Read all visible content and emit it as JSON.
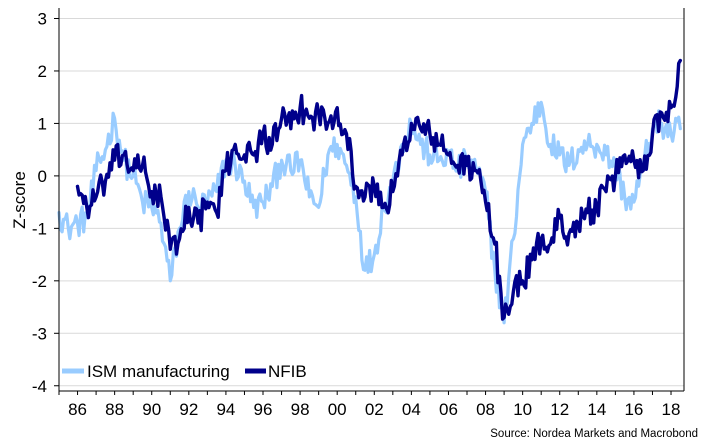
{
  "chart_data": {
    "type": "line",
    "ylabel": "Z-score",
    "xlabel": "",
    "source": "Source: Nordea Markets and Macrobond",
    "xlim": [
      1985.0,
      2018.7
    ],
    "ylim": [
      -4.1,
      3.2
    ],
    "x_ticks": [
      1986,
      1988,
      1990,
      1992,
      1994,
      1996,
      1998,
      2000,
      2002,
      2004,
      2006,
      2008,
      2010,
      2012,
      2014,
      2016,
      2018
    ],
    "x_tick_labels": [
      "86",
      "88",
      "90",
      "92",
      "94",
      "96",
      "98",
      "00",
      "02",
      "04",
      "06",
      "08",
      "10",
      "12",
      "14",
      "16",
      "18"
    ],
    "y_ticks": [
      -4,
      -3,
      -2,
      -1,
      0,
      1,
      2,
      3
    ],
    "y_tick_labels": [
      "-4",
      "-3",
      "-2",
      "-1",
      "0",
      "1",
      "2",
      "3"
    ],
    "legend": [
      "ISM manufacturing",
      "NFIB"
    ],
    "series": [
      {
        "name": "ISM manufacturing",
        "color": "#99ccff",
        "x": [
          1985.0,
          1985.5,
          1986.0,
          1986.5,
          1987.0,
          1987.5,
          1988.0,
          1988.5,
          1989.0,
          1989.5,
          1990.0,
          1990.5,
          1991.0,
          1991.5,
          1992.0,
          1992.5,
          1993.0,
          1993.5,
          1994.0,
          1994.5,
          1995.0,
          1995.5,
          1996.0,
          1996.5,
          1997.0,
          1997.5,
          1998.0,
          1998.5,
          1999.0,
          1999.5,
          2000.0,
          2000.5,
          2001.0,
          2001.5,
          2002.0,
          2002.5,
          2003.0,
          2003.5,
          2004.0,
          2004.5,
          2005.0,
          2005.5,
          2006.0,
          2006.5,
          2007.0,
          2007.5,
          2008.0,
          2008.5,
          2009.0,
          2009.5,
          2010.0,
          2010.5,
          2011.0,
          2011.5,
          2012.0,
          2012.5,
          2013.0,
          2013.5,
          2014.0,
          2014.5,
          2015.0,
          2015.5,
          2016.0,
          2016.5,
          2017.0,
          2017.5,
          2018.0,
          2018.5
        ],
        "values": [
          -0.7,
          -1.0,
          -0.9,
          -0.8,
          0.1,
          0.5,
          1.1,
          0.3,
          0.0,
          -0.5,
          -0.6,
          -0.9,
          -2.0,
          -1.0,
          -0.3,
          -0.6,
          -0.5,
          -0.3,
          0.3,
          0.2,
          -0.1,
          -0.6,
          -0.5,
          -0.2,
          0.3,
          0.1,
          0.3,
          -0.4,
          -0.6,
          0.4,
          0.6,
          0.2,
          -0.4,
          -1.8,
          -1.5,
          -0.6,
          -0.1,
          0.6,
          1.0,
          0.6,
          0.4,
          0.3,
          0.4,
          0.1,
          0.3,
          0.1,
          -0.3,
          -1.8,
          -2.8,
          -1.2,
          0.6,
          1.0,
          1.4,
          0.6,
          0.4,
          0.2,
          0.5,
          0.6,
          0.6,
          0.4,
          0.2,
          -0.4,
          -0.5,
          0.2,
          0.9,
          1.0,
          0.8,
          0.9
        ]
      },
      {
        "name": "NFIB",
        "color": "#00008b",
        "x": [
          1986.0,
          1986.5,
          1987.0,
          1987.5,
          1988.0,
          1988.5,
          1989.0,
          1989.5,
          1990.0,
          1990.5,
          1991.0,
          1991.5,
          1992.0,
          1992.5,
          1993.0,
          1993.5,
          1994.0,
          1994.5,
          1995.0,
          1995.5,
          1996.0,
          1996.5,
          1997.0,
          1997.5,
          1998.0,
          1998.5,
          1999.0,
          1999.5,
          2000.0,
          2000.5,
          2001.0,
          2001.5,
          2002.0,
          2002.5,
          2003.0,
          2003.5,
          2004.0,
          2004.5,
          2005.0,
          2005.5,
          2006.0,
          2006.5,
          2007.0,
          2007.5,
          2008.0,
          2008.5,
          2009.0,
          2009.5,
          2010.0,
          2010.5,
          2011.0,
          2011.5,
          2012.0,
          2012.5,
          2013.0,
          2013.5,
          2014.0,
          2014.5,
          2015.0,
          2015.5,
          2016.0,
          2016.5,
          2017.0,
          2017.5,
          2018.0,
          2018.5
        ],
        "values": [
          -0.2,
          -0.6,
          -0.4,
          -0.1,
          0.3,
          0.4,
          0.1,
          0.2,
          -0.3,
          -0.4,
          -1.4,
          -1.2,
          -0.6,
          -0.9,
          -0.5,
          -0.7,
          0.1,
          0.6,
          0.4,
          0.4,
          0.8,
          0.6,
          1.1,
          0.9,
          1.3,
          1.1,
          1.2,
          1.0,
          1.3,
          0.8,
          -0.2,
          -0.4,
          -0.2,
          -0.6,
          -0.3,
          0.4,
          1.0,
          0.9,
          0.8,
          0.6,
          0.4,
          0.2,
          0.2,
          0.1,
          -0.5,
          -1.3,
          -2.7,
          -2.2,
          -2.0,
          -1.6,
          -1.2,
          -1.3,
          -0.8,
          -1.1,
          -0.9,
          -0.7,
          -0.6,
          -0.3,
          0.0,
          0.4,
          0.3,
          0.1,
          0.8,
          1.2,
          1.3,
          2.2
        ]
      }
    ]
  }
}
